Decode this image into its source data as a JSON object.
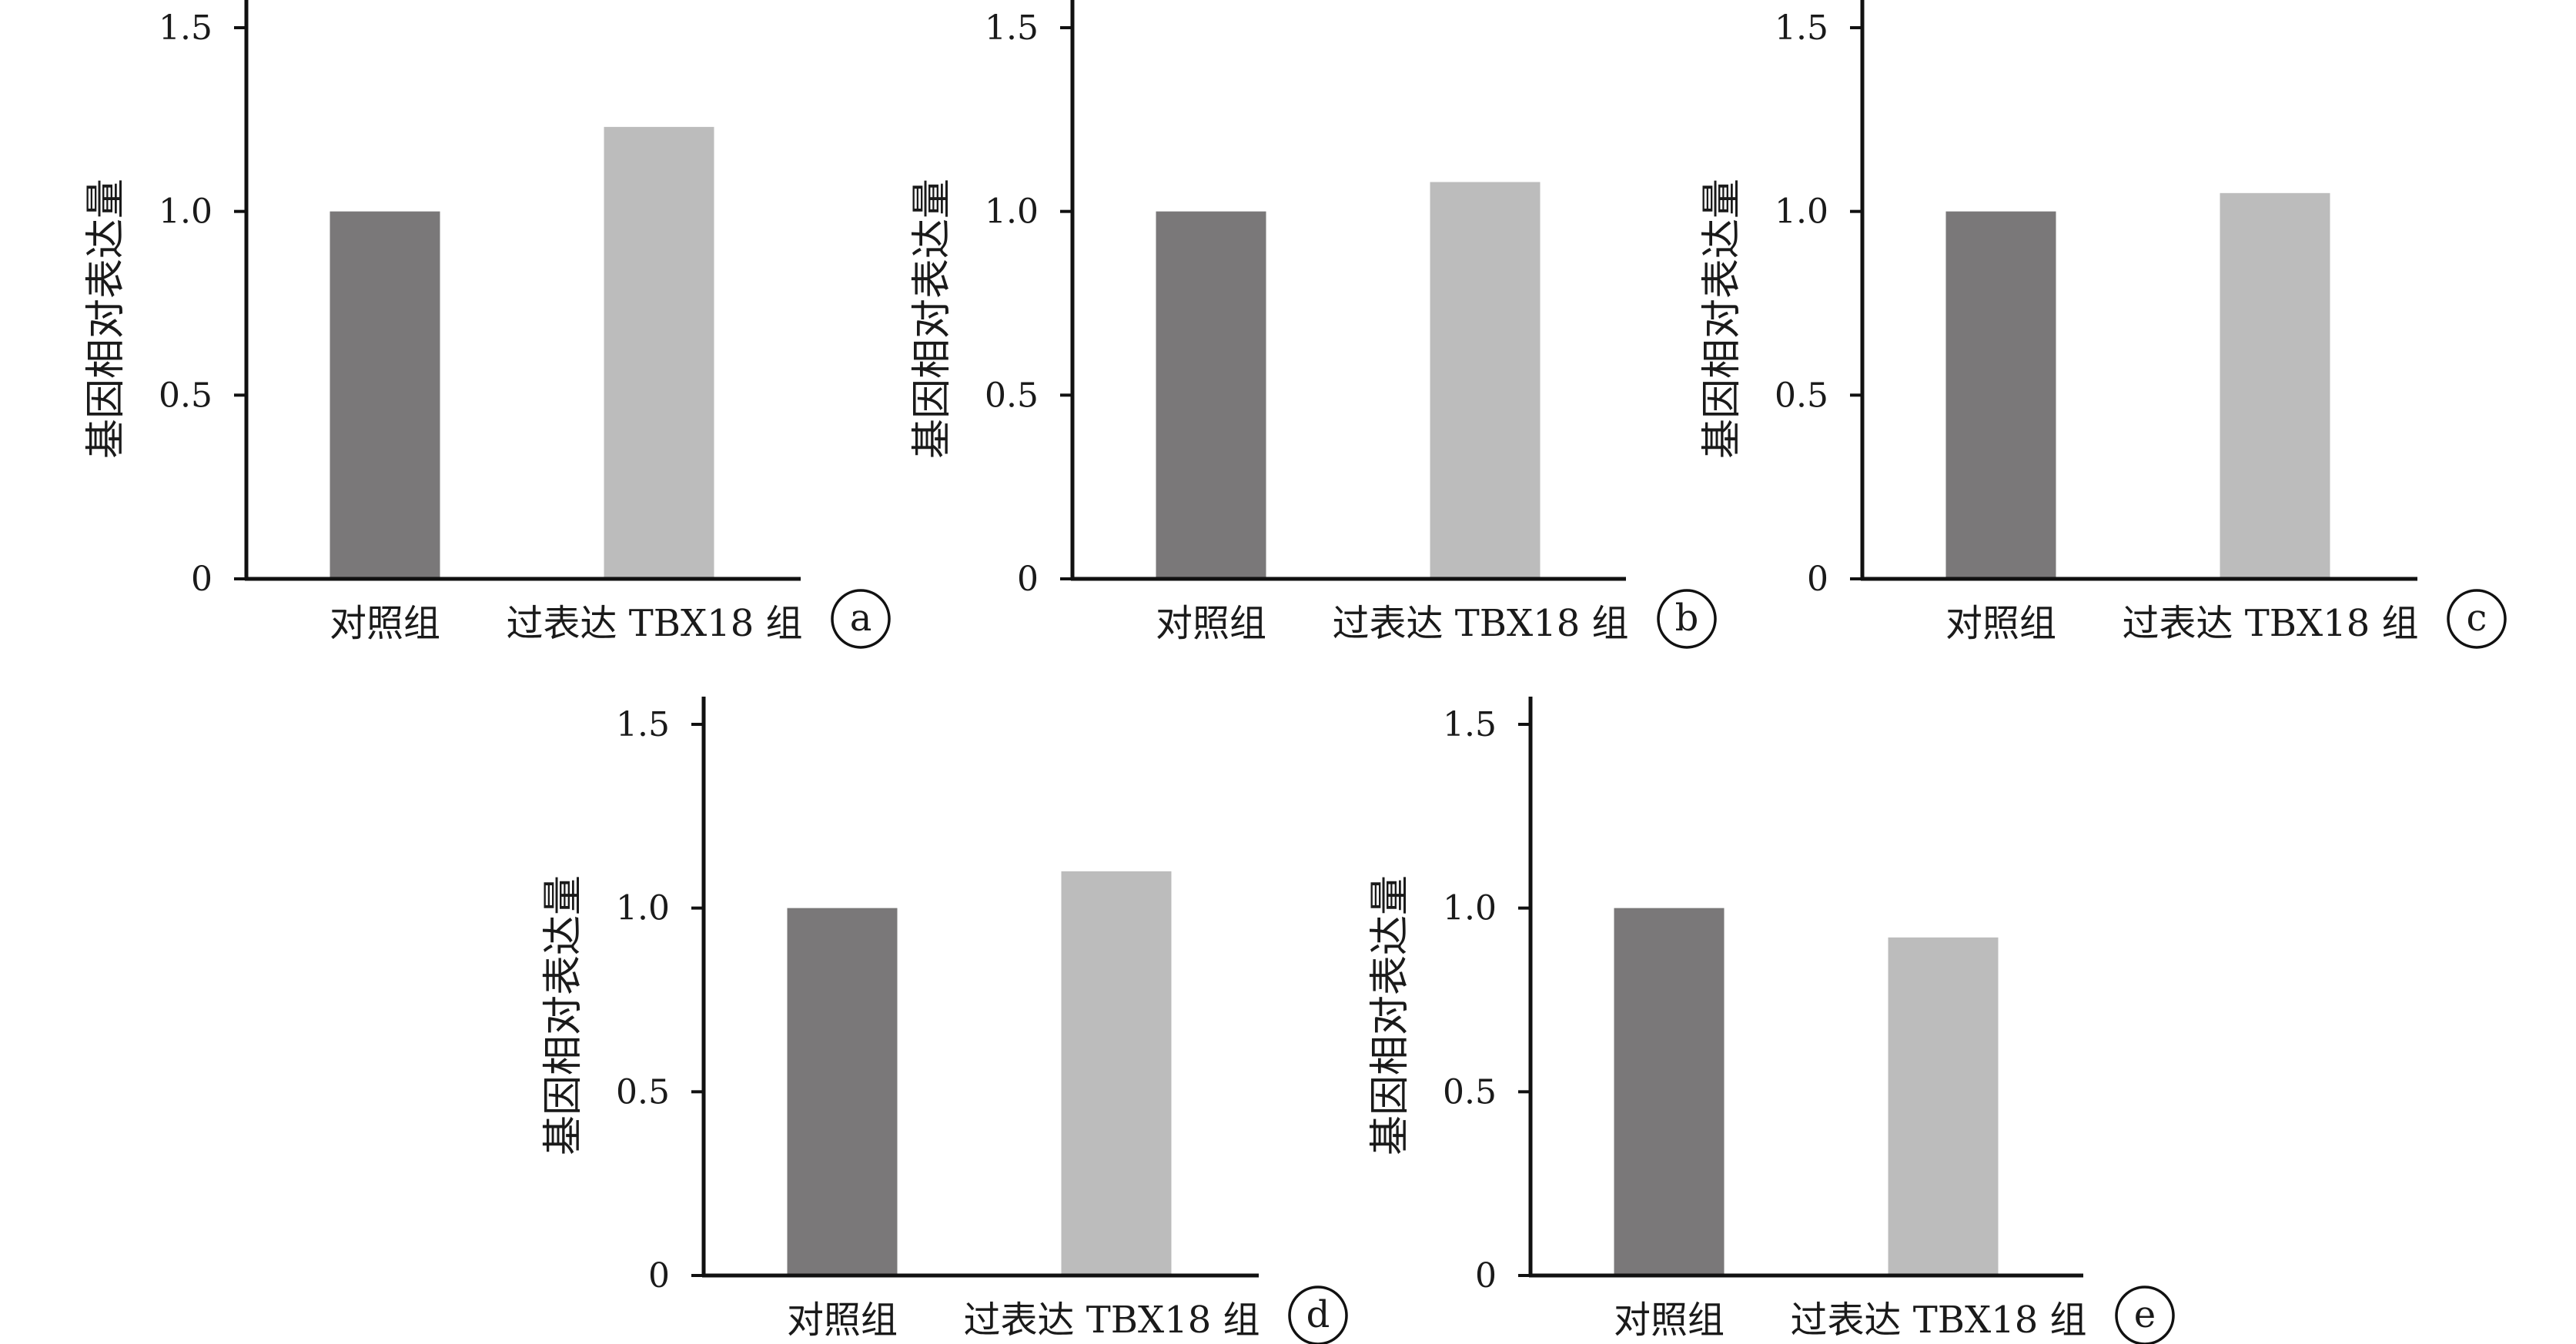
{
  "chart_data": [
    {
      "type": "bar",
      "panel": "a",
      "categories": [
        "对照组",
        "过表达 TBX18 组"
      ],
      "values": [
        1.0,
        1.23
      ],
      "xlabel": "",
      "ylabel": "基因相对表达量",
      "ylim": [
        0,
        1.5
      ],
      "yticks": [
        0,
        0.5,
        1.0,
        1.5
      ],
      "ytick_labels": [
        "0",
        "0.5",
        "1.0",
        "1.5"
      ],
      "colors": [
        "#7a7879",
        "#bcbcbc"
      ],
      "grid": false
    },
    {
      "type": "bar",
      "panel": "b",
      "categories": [
        "对照组",
        "过表达 TBX18 组"
      ],
      "values": [
        1.0,
        1.08
      ],
      "xlabel": "",
      "ylabel": "基因相对表达量",
      "ylim": [
        0,
        1.5
      ],
      "yticks": [
        0,
        0.5,
        1.0,
        1.5
      ],
      "ytick_labels": [
        "0",
        "0.5",
        "1.0",
        "1.5"
      ],
      "colors": [
        "#7a7879",
        "#bcbcbc"
      ],
      "grid": false
    },
    {
      "type": "bar",
      "panel": "c",
      "categories": [
        "对照组",
        "过表达 TBX18 组"
      ],
      "values": [
        1.0,
        1.05
      ],
      "xlabel": "",
      "ylabel": "基因相对表达量",
      "ylim": [
        0,
        1.5
      ],
      "yticks": [
        0,
        0.5,
        1.0,
        1.5
      ],
      "ytick_labels": [
        "0",
        "0.5",
        "1.0",
        "1.5"
      ],
      "colors": [
        "#7a7879",
        "#bcbcbc"
      ],
      "grid": false
    },
    {
      "type": "bar",
      "panel": "d",
      "categories": [
        "对照组",
        "过表达 TBX18 组"
      ],
      "values": [
        1.0,
        1.1
      ],
      "xlabel": "",
      "ylabel": "基因相对表达量",
      "ylim": [
        0,
        1.5
      ],
      "yticks": [
        0,
        0.5,
        1.0,
        1.5
      ],
      "ytick_labels": [
        "0",
        "0.5",
        "1.0",
        "1.5"
      ],
      "colors": [
        "#7a7879",
        "#bcbcbc"
      ],
      "grid": false
    },
    {
      "type": "bar",
      "panel": "e",
      "categories": [
        "对照组",
        "过表达 TBX18 组"
      ],
      "values": [
        1.0,
        0.92
      ],
      "xlabel": "",
      "ylabel": "基因相对表达量",
      "ylim": [
        0,
        1.5
      ],
      "yticks": [
        0,
        0.5,
        1.0,
        1.5
      ],
      "ytick_labels": [
        "0",
        "0.5",
        "1.0",
        "1.5"
      ],
      "colors": [
        "#7a7879",
        "#bcbcbc"
      ],
      "grid": false
    }
  ]
}
